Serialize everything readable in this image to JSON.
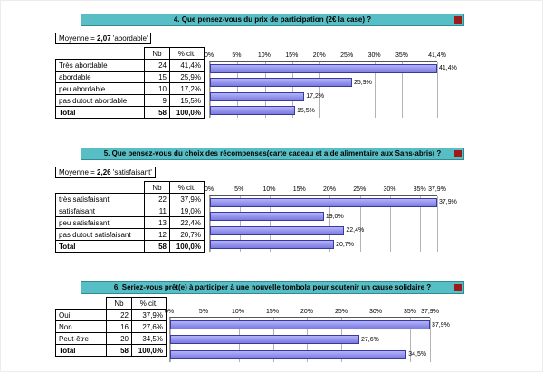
{
  "colors": {
    "title_bar_bg": "#58bec5",
    "title_bar_border": "#2f8a91",
    "bar_fill": "#8d8df0",
    "bar_border": "#3a3a9e",
    "red_marker": "#9e1b1b",
    "gridline": "#b3b3b3"
  },
  "sections": [
    {
      "title": "4. Que pensez-vous du prix de participation (2€ la case) ?",
      "mean": {
        "prefix": "Moyenne = ",
        "value": "2,07",
        "suffix": " 'abordable'"
      },
      "table": {
        "headers": {
          "nb": "Nb",
          "pct": "% cit."
        },
        "rows": [
          {
            "label": "Très abordable",
            "nb": "24",
            "pct": "41,4%"
          },
          {
            "label": "abordable",
            "nb": "15",
            "pct": "25,9%"
          },
          {
            "label": "peu abordable",
            "nb": "10",
            "pct": "17,2%"
          },
          {
            "label": "pas dutout abordable",
            "nb": "9",
            "pct": "15,5%"
          },
          {
            "label": "Total",
            "nb": "58",
            "pct": "100,0%"
          }
        ]
      }
    },
    {
      "title": "5. Que pensez-vous du choix des récompenses(carte cadeau et aide alimentaire aux Sans-abris) ?",
      "mean": {
        "prefix": "Moyenne = ",
        "value": "2,26",
        "suffix": " 'satisfaisant'"
      },
      "table": {
        "headers": {
          "nb": "Nb",
          "pct": "% cit."
        },
        "rows": [
          {
            "label": "très satisfaisant",
            "nb": "22",
            "pct": "37,9%"
          },
          {
            "label": "satisfaisant",
            "nb": "11",
            "pct": "19,0%"
          },
          {
            "label": "peu satisfaisant",
            "nb": "13",
            "pct": "22,4%"
          },
          {
            "label": "pas dutout satisfaisant",
            "nb": "12",
            "pct": "20,7%"
          },
          {
            "label": "Total",
            "nb": "58",
            "pct": "100,0%"
          }
        ]
      }
    },
    {
      "title": "6. Seriez-vous prêt(e) à participer à une nouvelle tombola pour soutenir un cause solidaire ?",
      "mean": null,
      "table": {
        "headers": {
          "nb": "Nb",
          "pct": "% cit."
        },
        "rows": [
          {
            "label": "Oui",
            "nb": "22",
            "pct": "37,9%"
          },
          {
            "label": "Non",
            "nb": "16",
            "pct": "27,6%"
          },
          {
            "label": "Peut-être",
            "nb": "20",
            "pct": "34,5%"
          },
          {
            "label": "Total",
            "nb": "58",
            "pct": "100,0%"
          }
        ]
      }
    }
  ],
  "chart_data": [
    {
      "type": "bar",
      "orientation": "horizontal",
      "title": "4. Que pensez-vous du prix de participation (2€ la case) ?",
      "categories": [
        "Très abordable",
        "abordable",
        "peu abordable",
        "pas dutout abordable"
      ],
      "counts": [
        24,
        15,
        10,
        9
      ],
      "values": [
        41.4,
        25.9,
        17.2,
        15.5
      ],
      "value_labels": [
        "41,4%",
        "25,9%",
        "17,2%",
        "15,5%"
      ],
      "total_n": 58,
      "xlim": [
        0,
        41.4
      ],
      "ticks": [
        {
          "value": 0,
          "label": "0%"
        },
        {
          "value": 5,
          "label": "5%"
        },
        {
          "value": 10,
          "label": "10%"
        },
        {
          "value": 15,
          "label": "15%"
        },
        {
          "value": 20,
          "label": "20%"
        },
        {
          "value": 25,
          "label": "25%"
        },
        {
          "value": 30,
          "label": "30%"
        },
        {
          "value": 35,
          "label": "35%"
        },
        {
          "value": 41.4,
          "label": "41,4%"
        }
      ],
      "grid": true,
      "legend": false
    },
    {
      "type": "bar",
      "orientation": "horizontal",
      "title": "5. Que pensez-vous du choix des récompenses(carte cadeau et aide alimentaire aux Sans-abris) ?",
      "categories": [
        "très satisfaisant",
        "satisfaisant",
        "peu satisfaisant",
        "pas dutout satisfaisant"
      ],
      "counts": [
        22,
        11,
        13,
        12
      ],
      "values": [
        37.9,
        19.0,
        22.4,
        20.7
      ],
      "value_labels": [
        "37,9%",
        "19,0%",
        "22,4%",
        "20,7%"
      ],
      "total_n": 58,
      "xlim": [
        0,
        37.9
      ],
      "ticks": [
        {
          "value": 0,
          "label": "0%"
        },
        {
          "value": 5,
          "label": "5%"
        },
        {
          "value": 10,
          "label": "10%"
        },
        {
          "value": 15,
          "label": "15%"
        },
        {
          "value": 20,
          "label": "20%"
        },
        {
          "value": 25,
          "label": "25%"
        },
        {
          "value": 30,
          "label": "30%"
        },
        {
          "value": 35,
          "label": "35%"
        },
        {
          "value": 37.9,
          "label": "37,9%"
        }
      ],
      "grid": true,
      "legend": false
    },
    {
      "type": "bar",
      "orientation": "horizontal",
      "title": "6. Seriez-vous prêt(e) à participer à une nouvelle tombola pour soutenir un cause solidaire ?",
      "categories": [
        "Oui",
        "Non",
        "Peut-être"
      ],
      "counts": [
        22,
        16,
        20
      ],
      "values": [
        37.9,
        27.6,
        34.5
      ],
      "value_labels": [
        "37,9%",
        "27,6%",
        "34,5%"
      ],
      "total_n": 58,
      "xlim": [
        0,
        37.9
      ],
      "ticks": [
        {
          "value": 0,
          "label": "0%"
        },
        {
          "value": 5,
          "label": "5%"
        },
        {
          "value": 10,
          "label": "10%"
        },
        {
          "value": 15,
          "label": "15%"
        },
        {
          "value": 20,
          "label": "20%"
        },
        {
          "value": 25,
          "label": "25%"
        },
        {
          "value": 30,
          "label": "30%"
        },
        {
          "value": 35,
          "label": "35%"
        },
        {
          "value": 37.9,
          "label": "37,9%"
        }
      ],
      "grid": true,
      "legend": false
    }
  ]
}
